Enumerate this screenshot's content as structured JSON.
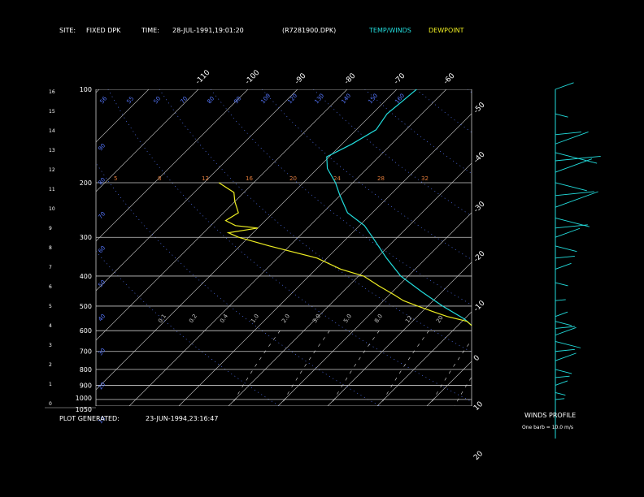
{
  "header": {
    "site_label": "SITE:",
    "site_value": "FIXED DPK",
    "time_label": "TIME:",
    "time_value": "28-JUL-1991,19:01:20",
    "file_id": "(R7281900.DPK)",
    "legend_temp": "TEMP/WINDS",
    "legend_dew": "DEWPOINT"
  },
  "footer": {
    "plot_generated_label": "PLOT GENERATED:",
    "plot_generated_value": "23-JUN-1994,23:16:47"
  },
  "winds_panel": {
    "title": "WINDS PROFILE",
    "barb_note": "One barb = 10.0 m/s"
  },
  "colors": {
    "temp": "#22dddd",
    "dew": "#eeee22",
    "isobar": "#c8c8c8",
    "isotherm": "#c8c8c8",
    "dry_adiabat": "#5577ff",
    "moist_adiabat": "#e07b3a",
    "mixing_ratio": "#e0e0e0"
  },
  "chart_data": {
    "type": "line",
    "pressure_ticks": [
      "100",
      "200",
      "300",
      "400",
      "500",
      "600",
      "700",
      "800",
      "900",
      "1000",
      "1050"
    ],
    "pressure_values": [
      100,
      200,
      300,
      400,
      500,
      600,
      700,
      800,
      900,
      1000,
      1050
    ],
    "height_ticks": [
      "0",
      "1",
      "2",
      "3",
      "4",
      "5",
      "6",
      "7",
      "8",
      "9",
      "10",
      "11",
      "12",
      "13",
      "14",
      "15",
      "16"
    ],
    "temp_ticks": [
      "-110",
      "-100",
      "-90",
      "-80",
      "-70",
      "-60",
      "-50",
      "-40",
      "-30",
      "-20",
      "-10",
      "0",
      "10",
      "20",
      "30"
    ],
    "temp_tick_values": [
      -110,
      -100,
      -90,
      -80,
      -70,
      -60,
      -50,
      -40,
      -30,
      -20,
      -10,
      0,
      10,
      20,
      30
    ],
    "dry_adiabat_labels": [
      "90",
      "80",
      "70",
      "60",
      "50",
      "40",
      "30",
      "20",
      "10"
    ],
    "mixing_ratio_labels": [
      "0.1",
      "0.2",
      "0.4",
      "1.0",
      "2.0",
      "3.0",
      "5.0",
      "8.0",
      "12",
      "20"
    ],
    "top_adiabat_labels": [
      "56",
      "55",
      "50",
      "70",
      "80",
      "90",
      "100",
      "120",
      "130",
      "140",
      "150",
      "160"
    ],
    "moist_labels": [
      "5",
      "8",
      "12",
      "16",
      "20",
      "24",
      "28",
      "32"
    ],
    "series": [
      {
        "name": "TEMP/WINDS",
        "points": [
          [
            100,
            -66
          ],
          [
            110,
            -66.5
          ],
          [
            120,
            -67
          ],
          [
            135,
            -66
          ],
          [
            150,
            -68
          ],
          [
            165,
            -70.5
          ],
          [
            180,
            -68
          ],
          [
            200,
            -63.5
          ],
          [
            220,
            -60
          ],
          [
            250,
            -55
          ],
          [
            275,
            -49
          ],
          [
            300,
            -45
          ],
          [
            350,
            -38
          ],
          [
            400,
            -31.5
          ],
          [
            450,
            -24
          ],
          [
            500,
            -17
          ],
          [
            550,
            -10
          ],
          [
            600,
            -5
          ],
          [
            650,
            -0.5
          ],
          [
            700,
            4
          ],
          [
            750,
            8
          ],
          [
            800,
            11
          ],
          [
            850,
            15.5
          ],
          [
            900,
            19.5
          ],
          [
            950,
            23
          ],
          [
            1000,
            27
          ],
          [
            1015,
            29
          ]
        ]
      },
      {
        "name": "DEWPOINT",
        "points": [
          [
            200,
            -87
          ],
          [
            215,
            -82
          ],
          [
            230,
            -80
          ],
          [
            250,
            -77
          ],
          [
            265,
            -78
          ],
          [
            275,
            -75
          ],
          [
            280,
            -70
          ],
          [
            290,
            -75
          ],
          [
            300,
            -72
          ],
          [
            320,
            -64
          ],
          [
            350,
            -52
          ],
          [
            380,
            -45
          ],
          [
            400,
            -39
          ],
          [
            430,
            -34
          ],
          [
            460,
            -29
          ],
          [
            480,
            -26
          ],
          [
            500,
            -22
          ],
          [
            520,
            -18
          ],
          [
            540,
            -14
          ],
          [
            560,
            -9
          ],
          [
            600,
            -5
          ],
          [
            650,
            -1
          ],
          [
            700,
            3
          ],
          [
            750,
            6
          ],
          [
            800,
            9
          ],
          [
            850,
            14
          ],
          [
            900,
            18
          ],
          [
            950,
            20
          ],
          [
            1000,
            21
          ],
          [
            1015,
            21.5
          ]
        ]
      }
    ],
    "wind_profile_m_s": [
      [
        100,
        10
      ],
      [
        120,
        5
      ],
      [
        140,
        15
      ],
      [
        150,
        22
      ],
      [
        160,
        28
      ],
      [
        170,
        30
      ],
      [
        185,
        25
      ],
      [
        200,
        20
      ],
      [
        220,
        25
      ],
      [
        240,
        30
      ],
      [
        260,
        22
      ],
      [
        280,
        20
      ],
      [
        300,
        15
      ],
      [
        320,
        12
      ],
      [
        350,
        10
      ],
      [
        380,
        8
      ],
      [
        420,
        5
      ],
      [
        480,
        3
      ],
      [
        540,
        5
      ],
      [
        560,
        8
      ],
      [
        590,
        10
      ],
      [
        620,
        12
      ],
      [
        650,
        15
      ],
      [
        700,
        10
      ],
      [
        750,
        12
      ],
      [
        800,
        8
      ],
      [
        850,
        6
      ],
      [
        900,
        5
      ],
      [
        950,
        3
      ],
      [
        1000,
        2
      ]
    ]
  }
}
